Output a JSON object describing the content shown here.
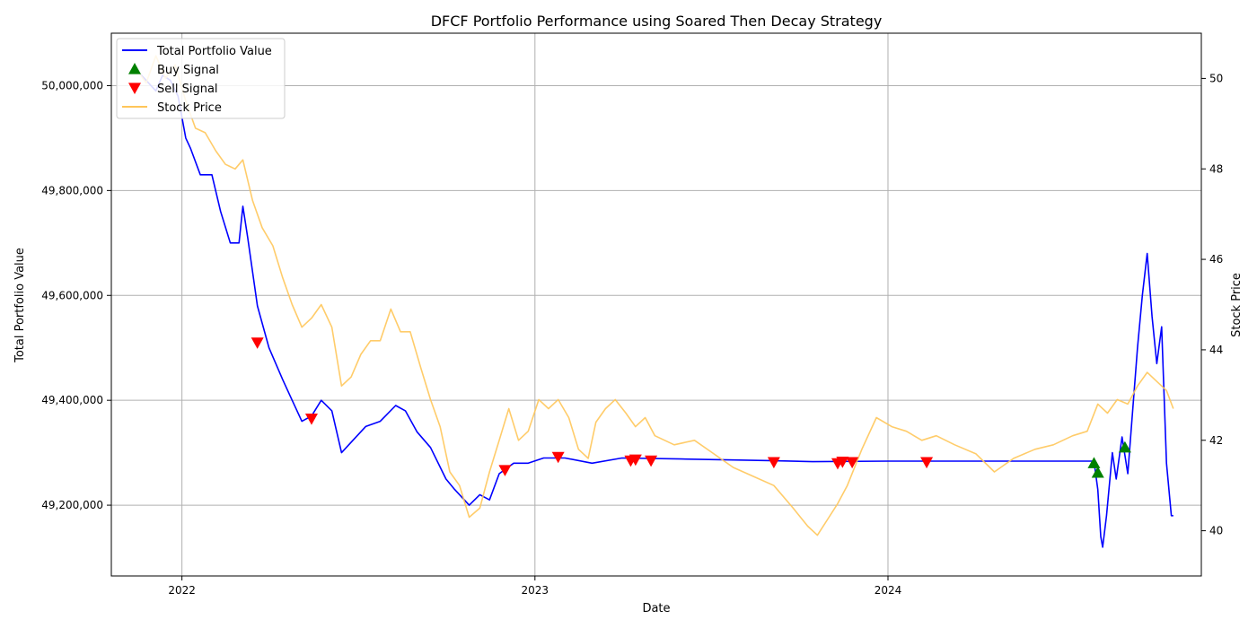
{
  "chart_data": {
    "type": "line",
    "title": "DFCF Portfolio Performance using Soared Then Decay Strategy",
    "xlabel": "Date",
    "ylabel": "Total Portfolio Value",
    "y2label": "Stock Price",
    "xlim": [
      "2021-10-20",
      "2024-11-20"
    ],
    "ylim": [
      49065000,
      50100000
    ],
    "y2lim": [
      39.0,
      51.0
    ],
    "x_ticks": [
      {
        "date": "2022-01-01",
        "label": "2022"
      },
      {
        "date": "2023-01-01",
        "label": "2023"
      },
      {
        "date": "2024-01-01",
        "label": "2024"
      }
    ],
    "y_ticks": [
      {
        "value": 49200000,
        "label": "49,200,000"
      },
      {
        "value": 49400000,
        "label": "49,400,000"
      },
      {
        "value": 49600000,
        "label": "49,600,000"
      },
      {
        "value": 49800000,
        "label": "49,800,000"
      },
      {
        "value": 50000000,
        "label": "50,000,000"
      }
    ],
    "y2_ticks": [
      {
        "value": 40,
        "label": "40"
      },
      {
        "value": 42,
        "label": "42"
      },
      {
        "value": 44,
        "label": "44"
      },
      {
        "value": 46,
        "label": "46"
      },
      {
        "value": 48,
        "label": "48"
      },
      {
        "value": 50,
        "label": "50"
      }
    ],
    "grid": true,
    "legend": "top-left",
    "legend_entries": [
      {
        "label": "Total Portfolio Value",
        "kind": "line",
        "color": "#0000ff"
      },
      {
        "label": "Buy Signal",
        "kind": "up-triangle",
        "color": "#008000"
      },
      {
        "label": "Sell Signal",
        "kind": "down-triangle",
        "color": "#ff0000"
      },
      {
        "label": "Stock Price",
        "kind": "line",
        "color": "#ffc65a"
      }
    ],
    "series": [
      {
        "name": "Total Portfolio Value",
        "axis": "left",
        "color": "#0000ff",
        "points": [
          [
            "2021-11-15",
            50030000
          ],
          [
            "2021-11-25",
            50010000
          ],
          [
            "2021-12-05",
            49990000
          ],
          [
            "2021-12-12",
            50020000
          ],
          [
            "2021-12-20",
            50010000
          ],
          [
            "2021-12-28",
            49980000
          ],
          [
            "2022-01-05",
            49900000
          ],
          [
            "2022-01-10",
            49880000
          ],
          [
            "2022-01-20",
            49830000
          ],
          [
            "2022-02-01",
            49830000
          ],
          [
            "2022-02-10",
            49760000
          ],
          [
            "2022-02-20",
            49700000
          ],
          [
            "2022-03-01",
            49700000
          ],
          [
            "2022-03-05",
            49770000
          ],
          [
            "2022-03-10",
            49710000
          ],
          [
            "2022-03-20",
            49580000
          ],
          [
            "2022-04-01",
            49500000
          ],
          [
            "2022-04-15",
            49440000
          ],
          [
            "2022-04-25",
            49400000
          ],
          [
            "2022-05-05",
            49360000
          ],
          [
            "2022-05-15",
            49370000
          ],
          [
            "2022-05-25",
            49400000
          ],
          [
            "2022-06-05",
            49380000
          ],
          [
            "2022-06-15",
            49300000
          ],
          [
            "2022-06-25",
            49320000
          ],
          [
            "2022-07-10",
            49350000
          ],
          [
            "2022-07-25",
            49360000
          ],
          [
            "2022-08-10",
            49390000
          ],
          [
            "2022-08-20",
            49380000
          ],
          [
            "2022-09-01",
            49340000
          ],
          [
            "2022-09-15",
            49310000
          ],
          [
            "2022-10-01",
            49250000
          ],
          [
            "2022-10-10",
            49230000
          ],
          [
            "2022-10-25",
            49200000
          ],
          [
            "2022-11-05",
            49220000
          ],
          [
            "2022-11-15",
            49210000
          ],
          [
            "2022-11-25",
            49260000
          ],
          [
            "2022-12-10",
            49280000
          ],
          [
            "2022-12-25",
            49280000
          ],
          [
            "2023-01-10",
            49290000
          ],
          [
            "2023-02-01",
            49290000
          ],
          [
            "2023-03-01",
            49280000
          ],
          [
            "2023-04-01",
            49290000
          ],
          [
            "2023-06-01",
            49288000
          ],
          [
            "2023-09-01",
            49285000
          ],
          [
            "2023-10-15",
            49283000
          ],
          [
            "2024-01-01",
            49284000
          ],
          [
            "2024-04-01",
            49284000
          ],
          [
            "2024-07-01",
            49284000
          ],
          [
            "2024-08-01",
            49284000
          ],
          [
            "2024-08-05",
            49230000
          ],
          [
            "2024-08-08",
            49140000
          ],
          [
            "2024-08-10",
            49120000
          ],
          [
            "2024-08-14",
            49180000
          ],
          [
            "2024-08-20",
            49300000
          ],
          [
            "2024-08-24",
            49250000
          ],
          [
            "2024-08-30",
            49330000
          ],
          [
            "2024-09-05",
            49260000
          ],
          [
            "2024-09-15",
            49500000
          ],
          [
            "2024-09-20",
            49600000
          ],
          [
            "2024-09-25",
            49680000
          ],
          [
            "2024-09-30",
            49560000
          ],
          [
            "2024-10-05",
            49470000
          ],
          [
            "2024-10-10",
            49540000
          ],
          [
            "2024-10-15",
            49280000
          ],
          [
            "2024-10-20",
            49180000
          ],
          [
            "2024-10-22",
            49180000
          ]
        ]
      },
      {
        "name": "Stock Price",
        "axis": "right",
        "color": "#ffc65a",
        "points": [
          [
            "2021-11-15",
            50.2
          ],
          [
            "2021-11-25",
            49.9
          ],
          [
            "2021-12-05",
            50.5
          ],
          [
            "2021-12-15",
            50.0
          ],
          [
            "2021-12-25",
            50.3
          ],
          [
            "2022-01-05",
            49.5
          ],
          [
            "2022-01-15",
            48.9
          ],
          [
            "2022-01-25",
            48.8
          ],
          [
            "2022-02-05",
            48.4
          ],
          [
            "2022-02-15",
            48.1
          ],
          [
            "2022-02-25",
            48.0
          ],
          [
            "2022-03-05",
            48.2
          ],
          [
            "2022-03-15",
            47.3
          ],
          [
            "2022-03-25",
            46.7
          ],
          [
            "2022-04-05",
            46.3
          ],
          [
            "2022-04-15",
            45.6
          ],
          [
            "2022-04-25",
            45.0
          ],
          [
            "2022-05-05",
            44.5
          ],
          [
            "2022-05-15",
            44.7
          ],
          [
            "2022-05-25",
            45.0
          ],
          [
            "2022-06-05",
            44.5
          ],
          [
            "2022-06-15",
            43.2
          ],
          [
            "2022-06-25",
            43.4
          ],
          [
            "2022-07-05",
            43.9
          ],
          [
            "2022-07-15",
            44.2
          ],
          [
            "2022-07-25",
            44.2
          ],
          [
            "2022-08-05",
            44.9
          ],
          [
            "2022-08-15",
            44.4
          ],
          [
            "2022-08-25",
            44.4
          ],
          [
            "2022-09-05",
            43.6
          ],
          [
            "2022-09-15",
            42.9
          ],
          [
            "2022-09-25",
            42.3
          ],
          [
            "2022-10-05",
            41.3
          ],
          [
            "2022-10-15",
            41.0
          ],
          [
            "2022-10-25",
            40.3
          ],
          [
            "2022-11-05",
            40.5
          ],
          [
            "2022-11-15",
            41.3
          ],
          [
            "2022-11-25",
            42.0
          ],
          [
            "2022-12-05",
            42.7
          ],
          [
            "2022-12-15",
            42.0
          ],
          [
            "2022-12-25",
            42.2
          ],
          [
            "2023-01-05",
            42.9
          ],
          [
            "2023-01-15",
            42.7
          ],
          [
            "2023-01-25",
            42.9
          ],
          [
            "2023-02-05",
            42.5
          ],
          [
            "2023-02-15",
            41.8
          ],
          [
            "2023-02-25",
            41.6
          ],
          [
            "2023-03-05",
            42.4
          ],
          [
            "2023-03-15",
            42.7
          ],
          [
            "2023-03-25",
            42.9
          ],
          [
            "2023-04-05",
            42.6
          ],
          [
            "2023-04-15",
            42.3
          ],
          [
            "2023-04-25",
            42.5
          ],
          [
            "2023-05-05",
            42.1
          ],
          [
            "2023-05-25",
            41.9
          ],
          [
            "2023-06-15",
            42.0
          ],
          [
            "2023-07-05",
            41.7
          ],
          [
            "2023-07-25",
            41.4
          ],
          [
            "2023-08-15",
            41.2
          ],
          [
            "2023-09-05",
            41.0
          ],
          [
            "2023-09-25",
            40.5
          ],
          [
            "2023-10-10",
            40.1
          ],
          [
            "2023-10-20",
            39.9
          ],
          [
            "2023-11-01",
            40.3
          ],
          [
            "2023-11-10",
            40.6
          ],
          [
            "2023-11-20",
            41.0
          ],
          [
            "2023-12-05",
            41.8
          ],
          [
            "2023-12-20",
            42.5
          ],
          [
            "2024-01-05",
            42.3
          ],
          [
            "2024-01-20",
            42.2
          ],
          [
            "2024-02-05",
            42.0
          ],
          [
            "2024-02-20",
            42.1
          ],
          [
            "2024-03-10",
            41.9
          ],
          [
            "2024-04-01",
            41.7
          ],
          [
            "2024-04-20",
            41.3
          ],
          [
            "2024-05-10",
            41.6
          ],
          [
            "2024-06-01",
            41.8
          ],
          [
            "2024-06-20",
            41.9
          ],
          [
            "2024-07-10",
            42.1
          ],
          [
            "2024-07-25",
            42.2
          ],
          [
            "2024-08-05",
            42.8
          ],
          [
            "2024-08-15",
            42.6
          ],
          [
            "2024-08-25",
            42.9
          ],
          [
            "2024-09-05",
            42.8
          ],
          [
            "2024-09-15",
            43.2
          ],
          [
            "2024-09-25",
            43.5
          ],
          [
            "2024-10-05",
            43.3
          ],
          [
            "2024-10-15",
            43.1
          ],
          [
            "2024-10-22",
            42.7
          ]
        ]
      }
    ],
    "buy_signals": [
      [
        "2024-08-01",
        49280000
      ],
      [
        "2024-08-05",
        49262000
      ],
      [
        "2024-09-02",
        49310000
      ]
    ],
    "sell_signals": [
      [
        "2022-03-20",
        49510000
      ],
      [
        "2022-05-15",
        49365000
      ],
      [
        "2022-12-01",
        49267000
      ],
      [
        "2023-01-25",
        49292000
      ],
      [
        "2023-04-10",
        49285000
      ],
      [
        "2023-04-15",
        49287000
      ],
      [
        "2023-05-01",
        49285000
      ],
      [
        "2023-09-05",
        49282000
      ],
      [
        "2023-11-10",
        49280000
      ],
      [
        "2023-11-15",
        49283000
      ],
      [
        "2023-11-25",
        49282000
      ],
      [
        "2024-02-10",
        49282000
      ]
    ]
  }
}
